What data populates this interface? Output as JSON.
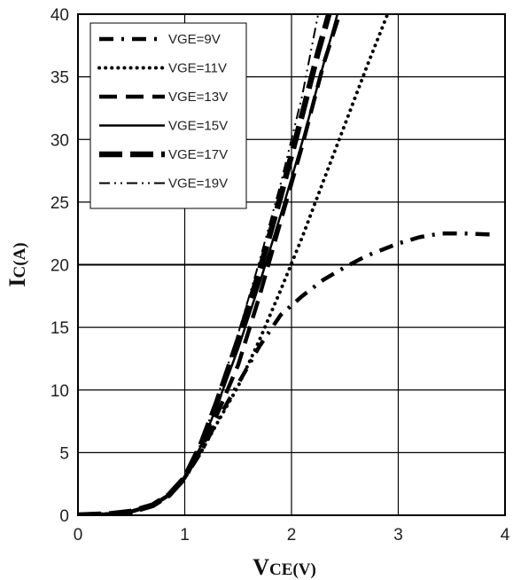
{
  "chart_data": {
    "type": "line",
    "title": "",
    "xlabel": {
      "main": "V",
      "sub": "CE(V)"
    },
    "ylabel": {
      "main": "I",
      "sub": "C(A)"
    },
    "xlim": [
      0,
      4
    ],
    "ylim": [
      0,
      40
    ],
    "xticks": [
      "0",
      "1",
      "2",
      "3",
      "4"
    ],
    "yticks": [
      "0",
      "5",
      "10",
      "15",
      "20",
      "25",
      "30",
      "35",
      "40"
    ],
    "grid": true,
    "legend_position": "top-left",
    "series": [
      {
        "name": "VGE=9V",
        "style": "long-dash-dot",
        "x": [
          0,
          0.3,
          0.5,
          0.7,
          0.85,
          1.0,
          1.15,
          1.3,
          1.5,
          1.7,
          1.9,
          2.1,
          2.3,
          2.5,
          2.7,
          3.0,
          3.2,
          3.4,
          3.6,
          3.9
        ],
        "y": [
          0,
          0.1,
          0.3,
          0.8,
          1.6,
          3.0,
          5.0,
          7.5,
          10.5,
          13.5,
          16.0,
          17.5,
          18.8,
          19.8,
          20.7,
          21.7,
          22.2,
          22.5,
          22.5,
          22.4
        ]
      },
      {
        "name": "VGE=11V",
        "style": "dotted",
        "x": [
          0,
          0.3,
          0.5,
          0.7,
          0.85,
          1.0,
          1.15,
          1.3,
          1.5,
          1.7,
          1.9,
          2.1,
          2.3,
          2.5,
          2.7,
          2.9
        ],
        "y": [
          0,
          0.1,
          0.3,
          0.8,
          1.6,
          3.0,
          5.0,
          7.3,
          10.3,
          14.0,
          18.0,
          22.2,
          26.7,
          31.2,
          35.7,
          40.0
        ]
      },
      {
        "name": "VGE=13V",
        "style": "dashed",
        "x": [
          0,
          0.3,
          0.5,
          0.7,
          0.85,
          1.0,
          1.15,
          1.3,
          1.5,
          1.7,
          1.9,
          2.1,
          2.3,
          2.45
        ],
        "y": [
          0,
          0.1,
          0.3,
          0.8,
          1.6,
          3.0,
          5.2,
          8.0,
          12.0,
          17.5,
          23.5,
          29.5,
          36.0,
          40.0
        ]
      },
      {
        "name": "VGE=15V",
        "style": "solid",
        "x": [
          0,
          0.3,
          0.5,
          0.7,
          0.85,
          1.0,
          1.15,
          1.3,
          1.5,
          1.7,
          1.9,
          2.1,
          2.3,
          2.43
        ],
        "y": [
          0,
          0.1,
          0.3,
          0.8,
          1.6,
          3.0,
          5.5,
          8.7,
          13.3,
          18.5,
          24.0,
          29.8,
          36.0,
          40.0
        ]
      },
      {
        "name": "VGE=17V",
        "style": "heavy-dash",
        "x": [
          0,
          0.3,
          0.5,
          0.7,
          0.85,
          1.0,
          1.15,
          1.3,
          1.5,
          1.7,
          1.9,
          2.1,
          2.25,
          2.35
        ],
        "y": [
          0,
          0.1,
          0.3,
          0.8,
          1.6,
          3.0,
          5.6,
          9.0,
          14.0,
          19.5,
          25.5,
          32.0,
          37.0,
          40.0
        ]
      },
      {
        "name": "VGE=19V",
        "style": "dash-dot-dot",
        "x": [
          0,
          0.3,
          0.5,
          0.7,
          0.85,
          1.0,
          1.15,
          1.3,
          1.5,
          1.7,
          1.9,
          2.1,
          2.25
        ],
        "y": [
          0,
          0.1,
          0.3,
          0.8,
          1.6,
          3.0,
          5.7,
          9.3,
          14.5,
          20.3,
          26.5,
          33.5,
          40.0
        ]
      }
    ]
  }
}
